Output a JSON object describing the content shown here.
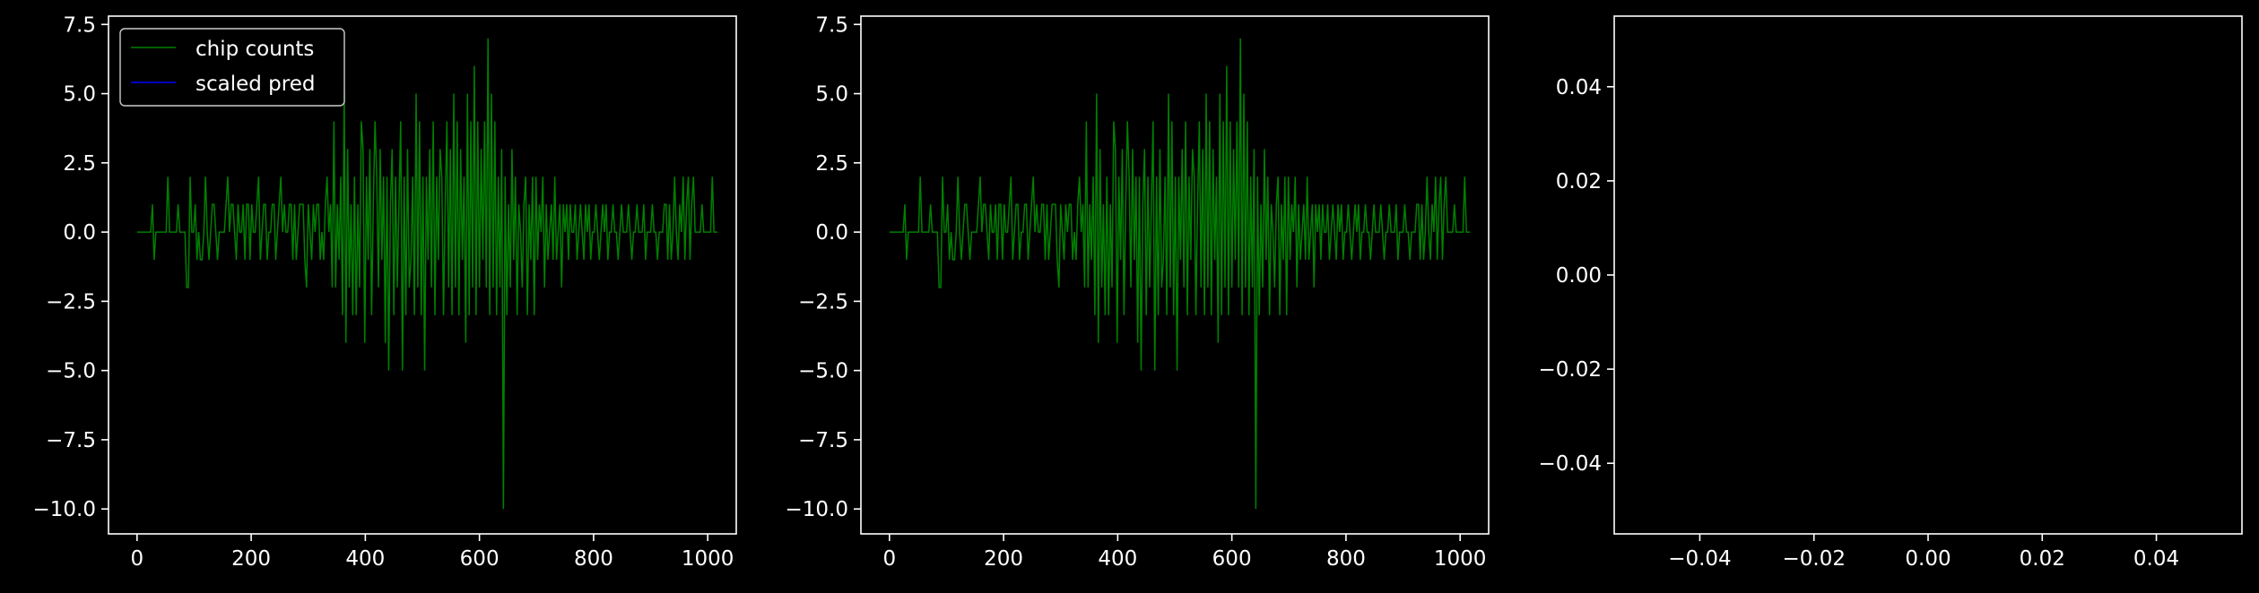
{
  "chart_data": [
    {
      "type": "line",
      "title": "",
      "xlabel": "",
      "ylabel": "",
      "xlim": [
        -50,
        1050
      ],
      "ylim": [
        -10.9,
        7.8
      ],
      "xticks": [
        0,
        200,
        400,
        600,
        800,
        1000
      ],
      "yticks": [
        -10.0,
        -7.5,
        -5.0,
        -2.5,
        0.0,
        2.5,
        5.0,
        7.5
      ],
      "xtick_labels": [
        "0",
        "200",
        "400",
        "600",
        "800",
        "1000"
      ],
      "ytick_labels": [
        "−10.0",
        "−7.5",
        "−5.0",
        "−2.5",
        "0.0",
        "2.5",
        "5.0",
        "7.5"
      ],
      "grid": false,
      "legend": {
        "position": "upper-left",
        "entries": [
          {
            "label": "chip counts",
            "color": "#008000"
          },
          {
            "label": "scaled pred",
            "color": "#0000ff"
          }
        ]
      },
      "series": [
        {
          "name": "chip counts",
          "color": "#008000",
          "x_start": 0,
          "x_step": 3,
          "values": [
            0,
            0,
            0,
            0,
            0,
            0,
            0,
            0,
            0,
            1,
            -1,
            0,
            0,
            0,
            0,
            0,
            0,
            0,
            2,
            0,
            0,
            0,
            0,
            0,
            1,
            0,
            0,
            0,
            0,
            -2,
            -2,
            2,
            0,
            0,
            1,
            -1,
            0,
            -1,
            -1,
            0,
            2,
            0,
            -1,
            0,
            1,
            1,
            0,
            -1,
            0,
            0,
            0,
            0,
            1,
            2,
            0,
            1,
            1,
            0,
            -1,
            1,
            0,
            0,
            1,
            -1,
            1,
            1,
            -1,
            1,
            0,
            0,
            1,
            2,
            -1,
            0,
            1,
            1,
            -1,
            0,
            0,
            1,
            1,
            -1,
            0,
            1,
            2,
            0,
            1,
            0,
            0,
            1,
            1,
            -1,
            1,
            -1,
            0,
            1,
            1,
            1,
            -1,
            -2,
            1,
            0,
            -1,
            1,
            0,
            1,
            1,
            -1,
            0,
            -1,
            1,
            2,
            0,
            1,
            -2,
            4,
            -2,
            1,
            -1,
            2,
            -3,
            5,
            -4,
            3,
            -2,
            1,
            -3,
            2,
            -3,
            1,
            -2,
            4,
            3,
            -4,
            2,
            -1,
            3,
            -3,
            1,
            4,
            2,
            -2,
            3,
            -1,
            2,
            -4,
            2,
            -5,
            1,
            3,
            -3,
            2,
            -2,
            1,
            4,
            -5,
            2,
            -3,
            3,
            -2,
            -1,
            2,
            -3,
            5,
            -2,
            4,
            -3,
            2,
            -5,
            2,
            -1,
            3,
            -2,
            4,
            -3,
            2,
            -1,
            3,
            2,
            -3,
            1,
            4,
            -2,
            3,
            -3,
            5,
            -2,
            4,
            -3,
            3,
            -1,
            2,
            -4,
            5,
            -3,
            4,
            -2,
            6,
            -3,
            4,
            -2,
            3,
            -1,
            4,
            -2,
            7,
            -3,
            5,
            -2,
            4,
            -3,
            2,
            -2,
            3,
            -10,
            2,
            -3,
            1,
            -2,
            3,
            -1,
            2,
            -3,
            1,
            0,
            -2,
            1,
            2,
            -3,
            1,
            -1,
            2,
            -3,
            2,
            -1,
            1,
            0,
            2,
            -2,
            1,
            -1,
            0,
            1,
            -1,
            2,
            -1,
            0,
            1,
            -2,
            1,
            0,
            1,
            -1,
            1,
            0,
            0,
            1,
            -1,
            0,
            1,
            0,
            -1,
            1,
            0,
            1,
            -1,
            0,
            0,
            1,
            0,
            -1,
            0,
            1,
            0,
            1,
            -1,
            0,
            0,
            1,
            0,
            0,
            -1,
            0,
            1,
            0,
            0,
            0,
            1,
            0,
            -1,
            0,
            0,
            1,
            0,
            0,
            0,
            1,
            -1,
            0,
            0,
            0,
            1,
            0,
            0,
            -1,
            0,
            0,
            0,
            1,
            1,
            -1,
            1,
            -1,
            0,
            2,
            0,
            -1,
            1,
            0,
            2,
            -1,
            1,
            2,
            -1,
            1,
            2,
            0,
            0,
            0,
            0,
            1,
            0,
            0,
            0,
            0,
            0,
            2,
            0,
            0,
            0
          ]
        },
        {
          "name": "scaled pred",
          "color": "#0000ff",
          "x_start": 0,
          "x_step": 3,
          "values": []
        }
      ]
    },
    {
      "type": "line",
      "title": "",
      "xlabel": "",
      "ylabel": "",
      "xlim": [
        -50,
        1050
      ],
      "ylim": [
        -10.9,
        7.8
      ],
      "xticks": [
        0,
        200,
        400,
        600,
        800,
        1000
      ],
      "yticks": [
        -10.0,
        -7.5,
        -5.0,
        -2.5,
        0.0,
        2.5,
        5.0,
        7.5
      ],
      "xtick_labels": [
        "0",
        "200",
        "400",
        "600",
        "800",
        "1000"
      ],
      "ytick_labels": [
        "−10.0",
        "−7.5",
        "−5.0",
        "−2.5",
        "0.0",
        "2.5",
        "5.0",
        "7.5"
      ],
      "grid": false,
      "series": [
        {
          "color": "#008000",
          "x_start": 0,
          "x_step": 3,
          "values": [
            0,
            0,
            0,
            0,
            0,
            0,
            0,
            0,
            0,
            1,
            -1,
            0,
            0,
            0,
            0,
            0,
            0,
            0,
            2,
            0,
            0,
            0,
            0,
            0,
            1,
            0,
            0,
            0,
            0,
            -2,
            -2,
            2,
            0,
            0,
            1,
            -1,
            0,
            -1,
            -1,
            0,
            2,
            0,
            -1,
            0,
            1,
            1,
            0,
            -1,
            0,
            0,
            0,
            0,
            1,
            2,
            0,
            1,
            1,
            0,
            -1,
            1,
            0,
            0,
            1,
            -1,
            1,
            1,
            -1,
            1,
            0,
            0,
            1,
            2,
            -1,
            0,
            1,
            1,
            -1,
            0,
            0,
            1,
            1,
            -1,
            0,
            1,
            2,
            0,
            1,
            0,
            0,
            1,
            1,
            -1,
            1,
            -1,
            0,
            1,
            1,
            1,
            -1,
            -2,
            1,
            0,
            -1,
            1,
            0,
            1,
            1,
            -1,
            0,
            -1,
            1,
            2,
            0,
            1,
            -2,
            4,
            -2,
            1,
            -1,
            2,
            -3,
            5,
            -4,
            3,
            -2,
            1,
            -3,
            2,
            -3,
            1,
            -2,
            4,
            3,
            -4,
            2,
            -1,
            3,
            -3,
            1,
            4,
            2,
            -2,
            3,
            -1,
            2,
            -4,
            2,
            -5,
            1,
            3,
            -3,
            2,
            -2,
            1,
            4,
            -5,
            2,
            -3,
            3,
            -2,
            -1,
            2,
            -3,
            5,
            -2,
            4,
            -3,
            2,
            -5,
            2,
            -1,
            3,
            -2,
            4,
            -3,
            2,
            -1,
            3,
            2,
            -3,
            1,
            4,
            -2,
            3,
            -3,
            5,
            -2,
            4,
            -3,
            3,
            -1,
            2,
            -4,
            5,
            -3,
            4,
            -2,
            6,
            -3,
            4,
            -2,
            3,
            -1,
            4,
            -2,
            7,
            -3,
            5,
            -2,
            4,
            -3,
            2,
            -2,
            3,
            -10,
            2,
            -3,
            1,
            -2,
            3,
            -1,
            2,
            -3,
            1,
            0,
            -2,
            1,
            2,
            -3,
            1,
            -1,
            2,
            -3,
            2,
            -1,
            1,
            0,
            2,
            -2,
            1,
            -1,
            0,
            1,
            -1,
            2,
            -1,
            0,
            1,
            -2,
            1,
            0,
            1,
            -1,
            1,
            0,
            0,
            1,
            -1,
            0,
            1,
            0,
            -1,
            1,
            0,
            1,
            -1,
            0,
            0,
            1,
            0,
            -1,
            0,
            1,
            0,
            1,
            -1,
            0,
            0,
            1,
            0,
            0,
            -1,
            0,
            1,
            0,
            0,
            0,
            1,
            0,
            -1,
            0,
            0,
            1,
            0,
            0,
            0,
            1,
            -1,
            0,
            0,
            0,
            1,
            0,
            0,
            -1,
            0,
            0,
            0,
            1,
            1,
            -1,
            1,
            -1,
            0,
            2,
            0,
            -1,
            1,
            0,
            2,
            -1,
            1,
            2,
            -1,
            1,
            2,
            0,
            0,
            0,
            0,
            1,
            0,
            0,
            0,
            0,
            0,
            2,
            0,
            0,
            0
          ]
        }
      ]
    },
    {
      "type": "line",
      "title": "",
      "xlabel": "",
      "ylabel": "",
      "xlim": [
        -0.055,
        0.055
      ],
      "ylim": [
        -0.055,
        0.055
      ],
      "xticks": [
        -0.04,
        -0.02,
        0.0,
        0.02,
        0.04
      ],
      "yticks": [
        -0.04,
        -0.02,
        0.0,
        0.02,
        0.04
      ],
      "xtick_labels": [
        "−0.04",
        "−0.02",
        "0.00",
        "0.02",
        "0.04"
      ],
      "ytick_labels": [
        "−0.04",
        "−0.02",
        "0.00",
        "0.02",
        "0.04"
      ],
      "grid": false,
      "series": []
    }
  ]
}
